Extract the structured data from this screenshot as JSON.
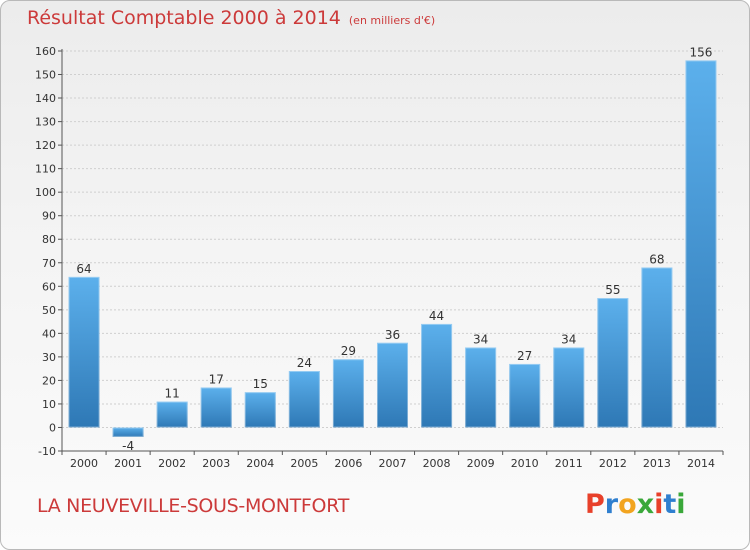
{
  "header": {
    "title": "Résultat Comptable 2000 à 2014",
    "unit": "(en milliers d'€)"
  },
  "footer": {
    "commune": "LA NEUVEVILLE-SOUS-MONTFORT",
    "logo_text": "Proxiti",
    "logo_colors": [
      "#e8402a",
      "#2f7fcf",
      "#f2a41f",
      "#3aa83a",
      "#e8402a",
      "#2f7fcf",
      "#3aa83a"
    ]
  },
  "chart_data": {
    "type": "bar",
    "title": "Résultat Comptable 2000 à 2014",
    "subtitle": "(en milliers d'€)",
    "categories": [
      "2000",
      "2001",
      "2002",
      "2003",
      "2004",
      "2005",
      "2006",
      "2007",
      "2008",
      "2009",
      "2010",
      "2011",
      "2012",
      "2013",
      "2014"
    ],
    "values": [
      64,
      -4,
      11,
      17,
      15,
      24,
      29,
      36,
      44,
      34,
      27,
      34,
      55,
      68,
      156
    ],
    "data_labels": [
      "64",
      "-4",
      "11",
      "17",
      "15",
      "24",
      "29",
      "36",
      "44",
      "34",
      "27",
      "34",
      "55",
      "68",
      "156"
    ],
    "ylim": [
      -10,
      160
    ],
    "yticks": [
      -10,
      0,
      10,
      20,
      30,
      40,
      50,
      60,
      70,
      80,
      90,
      100,
      110,
      120,
      130,
      140,
      150,
      160
    ],
    "grid": true,
    "bar_color_light": "#5cb0ec",
    "bar_color_dark": "#2e78b5",
    "label_color": "#333333",
    "xlabel": "",
    "ylabel": ""
  }
}
